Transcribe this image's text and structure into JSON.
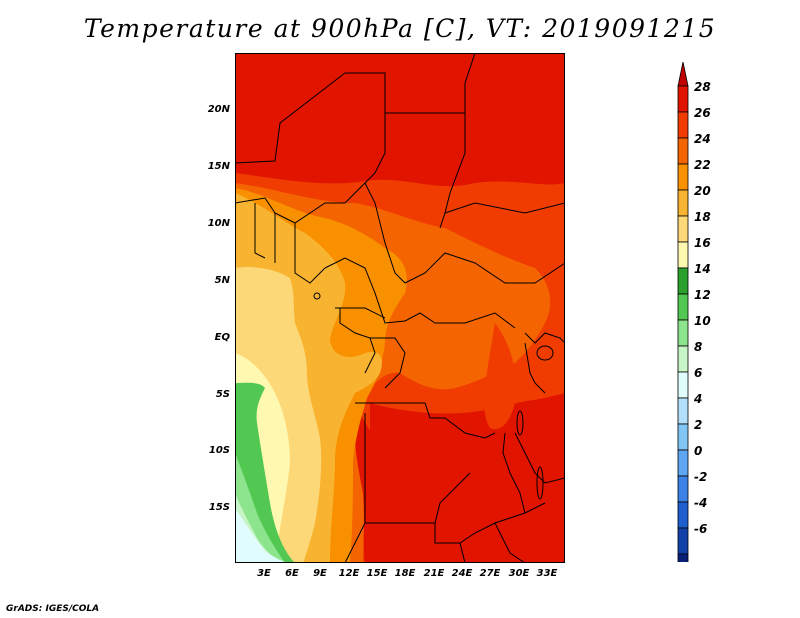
{
  "title": "Temperature at 900hPa [C], VT: 2019091215",
  "credit": "GrADS: IGES/COLA",
  "lat_labels": [
    "20N",
    "15N",
    "10N",
    "5N",
    "EQ",
    "5S",
    "10S",
    "15S"
  ],
  "lon_labels": [
    "3E",
    "6E",
    "9E",
    "12E",
    "15E",
    "18E",
    "21E",
    "24E",
    "27E",
    "30E",
    "33E"
  ],
  "colorbar": {
    "labels": [
      "28",
      "26",
      "24",
      "22",
      "20",
      "18",
      "16",
      "14",
      "12",
      "10",
      "8",
      "6",
      "4",
      "2",
      "0",
      "-2",
      "-4",
      "-6"
    ],
    "colors": [
      "#c10000",
      "#e11400",
      "#f03c00",
      "#f46400",
      "#f89000",
      "#f8b430",
      "#fcd878",
      "#fef8b0",
      "#2ca02c",
      "#52c852",
      "#8ce48c",
      "#c8f5c8",
      "#e0fcfc",
      "#b2e0fa",
      "#82c6f6",
      "#5ea6f2",
      "#3c82e6",
      "#1e5ecd",
      "#1040a8",
      "#0a2078",
      "#e6e6fa"
    ]
  },
  "legend_colors": {
    "hot": "#e11400",
    "warm": "#f46400",
    "mild": "#f8b430",
    "cool": "#fcd878",
    "green": "#52c852",
    "cyan": "#e0fcfc"
  }
}
